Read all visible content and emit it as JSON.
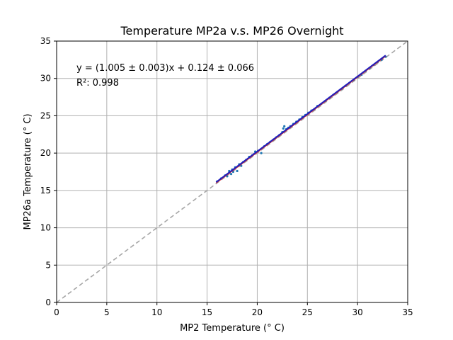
{
  "chart_data": {
    "type": "scatter",
    "title": "Temperature MP2a v.s. MP26 Overnight",
    "xlabel": "MP2 Temperature (° C)",
    "ylabel": "MP26a Temperature (° C)",
    "xlim": [
      0,
      35
    ],
    "ylim": [
      0,
      35
    ],
    "xticks": [
      "0",
      "5",
      "10",
      "15",
      "20",
      "25",
      "30",
      "35"
    ],
    "yticks": [
      "0",
      "5",
      "10",
      "15",
      "20",
      "25",
      "30",
      "35"
    ],
    "grid": true,
    "annotations": [
      "y = (1.005 ± 0.003)x + 0.124 ± 0.066",
      "R²: 0.998"
    ],
    "fit_line": {
      "slope": 1.005,
      "intercept": 0.124,
      "x_range": [
        15.9,
        32.8
      ],
      "color": "#1f1fbf"
    },
    "reference_line": {
      "slope": 1,
      "intercept": 0,
      "style": "dashed",
      "color": "#a6a6a6"
    },
    "band": {
      "color": "#d62728"
    },
    "series": [
      {
        "color": "#1f77b4",
        "x": [
          16.0,
          16.4,
          16.8,
          17.0,
          17.2,
          17.4,
          17.5,
          17.6,
          17.8,
          18.0,
          18.2,
          18.4,
          18.6,
          18.9,
          19.2,
          19.5,
          19.8,
          20.1,
          20.4,
          20.7,
          21.0,
          21.3,
          21.6,
          21.9,
          22.2,
          22.5,
          22.6,
          22.7,
          22.9,
          23.1,
          23.3,
          23.6,
          23.9,
          24.2,
          24.5,
          24.8,
          25.1,
          25.4,
          25.7,
          26.0,
          26.4,
          26.8,
          27.2,
          27.6,
          28.0,
          28.4,
          28.8,
          29.2,
          29.6,
          30.0,
          30.4,
          30.8,
          31.2,
          31.6,
          32.0,
          32.4,
          32.8
        ],
        "y": [
          16.2,
          16.6,
          17.0,
          16.9,
          17.6,
          17.2,
          17.8,
          17.5,
          18.1,
          17.6,
          18.5,
          18.3,
          18.8,
          19.1,
          19.5,
          19.7,
          20.2,
          20.3,
          20.0,
          20.9,
          21.2,
          21.5,
          21.8,
          22.1,
          22.4,
          22.8,
          23.3,
          23.6,
          23.2,
          23.4,
          23.6,
          23.9,
          24.2,
          24.5,
          24.8,
          25.1,
          25.4,
          25.7,
          25.9,
          26.3,
          26.6,
          27.0,
          27.4,
          27.8,
          28.2,
          28.6,
          29.0,
          29.4,
          29.8,
          30.2,
          30.5,
          31.0,
          31.4,
          31.8,
          32.2,
          32.5,
          32.9
        ]
      }
    ]
  }
}
